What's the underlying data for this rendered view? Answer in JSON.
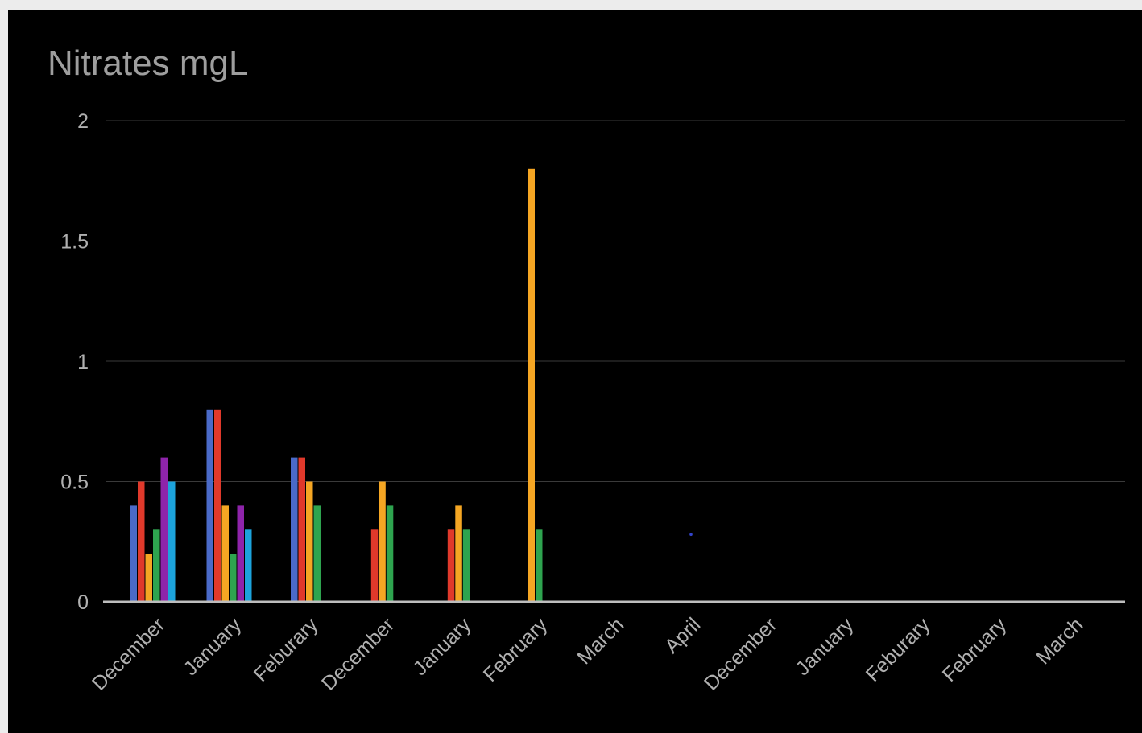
{
  "chart_data": {
    "type": "bar",
    "title": "Nitrates mgL",
    "xlabel": "",
    "ylabel": "",
    "ylim": [
      0,
      2
    ],
    "yticks": [
      "0",
      "0.5",
      "1",
      "1.5",
      "2"
    ],
    "grid": true,
    "legend": "none",
    "categories": [
      "December",
      "January",
      "Feburary",
      "December",
      "January",
      "February",
      "March",
      "April",
      "December",
      "January",
      "Feburary",
      "February",
      "March"
    ],
    "series": [
      {
        "color": "#4a6ac8",
        "values": [
          0.4,
          0.8,
          0.6,
          null,
          null,
          null,
          null,
          null,
          null,
          null,
          null,
          null,
          null
        ]
      },
      {
        "color": "#e0392b",
        "values": [
          0.5,
          0.8,
          0.6,
          0.3,
          0.3,
          null,
          null,
          null,
          null,
          null,
          null,
          null,
          null
        ]
      },
      {
        "color": "#f5a623",
        "values": [
          0.2,
          0.4,
          0.5,
          0.5,
          0.4,
          1.8,
          null,
          null,
          null,
          null,
          null,
          null,
          null
        ]
      },
      {
        "color": "#2ea44f",
        "values": [
          0.3,
          0.2,
          0.4,
          0.4,
          0.3,
          0.3,
          null,
          null,
          null,
          null,
          null,
          null,
          null
        ]
      },
      {
        "color": "#8e24aa",
        "values": [
          0.6,
          0.4,
          null,
          null,
          null,
          null,
          null,
          null,
          null,
          null,
          null,
          null,
          null
        ]
      },
      {
        "color": "#1ca3dc",
        "values": [
          0.5,
          0.3,
          null,
          null,
          null,
          null,
          null,
          null,
          null,
          null,
          null,
          null,
          null
        ]
      }
    ],
    "points": [
      {
        "category": "April",
        "value": 0.28,
        "color": "#3344cc"
      }
    ]
  }
}
